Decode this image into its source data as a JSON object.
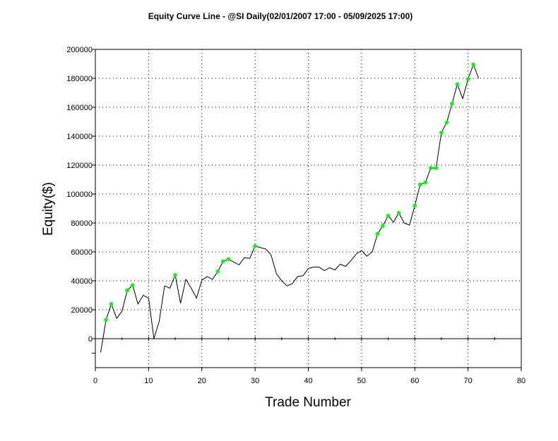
{
  "chart_data": {
    "type": "line",
    "title": "Equity Curve Line - @SI Daily(02/01/2007 17:00 - 05/09/2025 17:00)",
    "xlabel": "Trade Number",
    "ylabel": "Equity($)",
    "xlim": [
      0,
      80
    ],
    "ylim": [
      -20000,
      200000
    ],
    "x_ticks": [
      0,
      10,
      20,
      30,
      40,
      50,
      60,
      70,
      80
    ],
    "y_ticks": [
      0,
      20000,
      40000,
      60000,
      80000,
      100000,
      120000,
      140000,
      160000,
      180000,
      200000
    ],
    "grid": true,
    "legend": "none",
    "colors": {
      "line": "#000000",
      "marker": "#00ff00"
    },
    "series": [
      {
        "x": [
          1,
          2,
          3,
          4,
          5,
          6,
          7,
          8,
          9,
          10,
          11,
          12,
          13,
          14,
          15,
          16,
          17,
          18,
          19,
          20,
          21,
          22,
          23,
          24,
          25,
          26,
          27,
          28,
          29,
          30,
          31,
          32,
          33,
          34,
          35,
          36,
          37,
          38,
          39,
          40,
          41,
          42,
          43,
          44,
          45,
          46,
          47,
          48,
          49,
          50,
          51,
          52,
          53,
          54,
          55,
          56,
          57,
          58,
          59,
          60,
          61,
          62,
          63,
          64,
          65,
          66,
          67,
          68,
          69,
          70,
          71,
          72
        ],
        "y": [
          -9500,
          13000,
          24000,
          14000,
          19000,
          33500,
          37000,
          24000,
          30000,
          28000,
          0,
          12000,
          36500,
          35000,
          44000,
          24500,
          41000,
          35000,
          28000,
          40500,
          43000,
          41000,
          46500,
          53500,
          55000,
          53000,
          51000,
          56000,
          55500,
          64000,
          63000,
          62000,
          58000,
          45000,
          40000,
          36500,
          38000,
          43000,
          43500,
          48500,
          49500,
          49500,
          47000,
          49000,
          47500,
          51500,
          50000,
          54000,
          58500,
          61000,
          57000,
          60000,
          72500,
          78000,
          85000,
          80500,
          87000,
          80000,
          78500,
          92000,
          106500,
          108000,
          118000,
          118000,
          142500,
          149500,
          162500,
          176000,
          166000,
          179500,
          189500,
          180000
        ],
        "markers": [
          0,
          1,
          1,
          0,
          0,
          1,
          1,
          0,
          0,
          0,
          0,
          0,
          0,
          0,
          1,
          0,
          0,
          0,
          0,
          0,
          0,
          0,
          1,
          1,
          1,
          0,
          0,
          0,
          0,
          1,
          0,
          0,
          0,
          0,
          0,
          0,
          0,
          0,
          0,
          0,
          0,
          0,
          0,
          0,
          0,
          0,
          0,
          0,
          0,
          0,
          0,
          0,
          1,
          1,
          1,
          0,
          1,
          0,
          0,
          1,
          1,
          1,
          1,
          1,
          1,
          1,
          1,
          1,
          0,
          1,
          1,
          0
        ]
      }
    ]
  }
}
